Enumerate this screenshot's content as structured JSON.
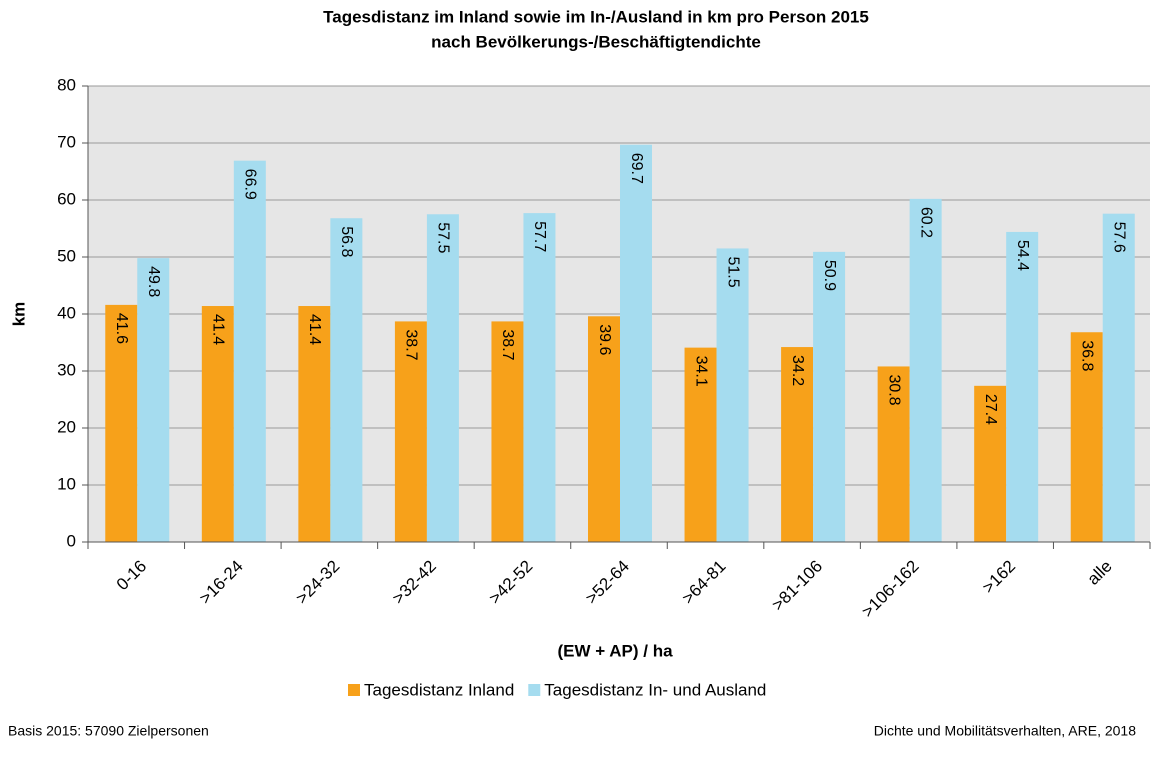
{
  "chart_data": {
    "type": "bar",
    "title": "Tagesdistanz im Inland sowie im In-/Ausland in km pro Person 2015",
    "subtitle": "nach Bevölkerungs-/Beschäftigtendichte",
    "y_label": "km",
    "x_label": "(EW + AP) / ha",
    "categories": [
      "0-16",
      ">16-24",
      ">24-32",
      ">32-42",
      ">42-52",
      ">52-64",
      ">64-81",
      ">81-106",
      ">106-162",
      ">162",
      "alle"
    ],
    "series": [
      {
        "name": "Tagesdistanz Inland",
        "color": "#f7a11a",
        "values": [
          41.6,
          41.4,
          41.4,
          38.7,
          38.7,
          39.6,
          34.1,
          34.2,
          30.8,
          27.4,
          36.8
        ]
      },
      {
        "name": "Tagesdistanz In- und Ausland",
        "color": "#a5dcef",
        "values": [
          49.8,
          66.9,
          56.8,
          57.5,
          57.7,
          69.7,
          51.5,
          50.9,
          60.2,
          54.4,
          57.6
        ]
      }
    ],
    "ylim": [
      0,
      80
    ],
    "yticks": [
      0,
      10,
      20,
      30,
      40,
      50,
      60,
      70,
      80
    ],
    "grid": true,
    "legend": "bottom",
    "note": "Basis 2015: 57090 Zielpersonen",
    "source": "Dichte und Mobilitätsverhalten, ARE, 2018"
  }
}
